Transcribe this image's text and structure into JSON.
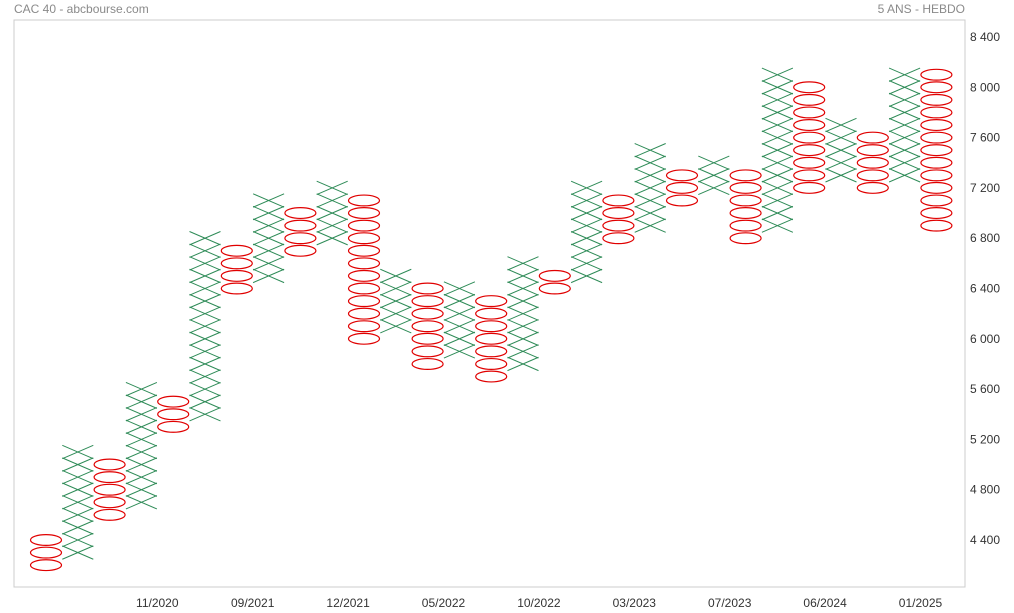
{
  "header": {
    "left": "CAC 40 - abcbourse.com",
    "right": "5 ANS - HEBDO"
  },
  "colors": {
    "x_color": "#2e8b57",
    "o_color": "#e00000",
    "frame": "#cccccc"
  },
  "chart_data": {
    "type": "point-and-figure",
    "box_size": 100,
    "ylim": [
      4100,
      8500
    ],
    "y_ticks": [
      4400,
      4800,
      5200,
      5600,
      6000,
      6400,
      6800,
      7200,
      7600,
      8000,
      8400
    ],
    "y_tick_labels": [
      "4 400",
      "4 800",
      "5 200",
      "5 600",
      "6 000",
      "6 400",
      "6 800",
      "7 200",
      "7 600",
      "8 000",
      "8 400"
    ],
    "x_labels": [
      {
        "col": 3.5,
        "label": "11/2020"
      },
      {
        "col": 6.5,
        "label": "09/2021"
      },
      {
        "col": 9.5,
        "label": "12/2021"
      },
      {
        "col": 12.5,
        "label": "05/2022"
      },
      {
        "col": 15.5,
        "label": "10/2022"
      },
      {
        "col": 18.5,
        "label": "03/2023"
      },
      {
        "col": 21.5,
        "label": "07/2023"
      },
      {
        "col": 24.5,
        "label": "06/2024"
      },
      {
        "col": 27.5,
        "label": "01/2025"
      }
    ],
    "columns": [
      {
        "type": "O",
        "high": 4400,
        "low": 4200
      },
      {
        "type": "X",
        "low": 4300,
        "high": 5100
      },
      {
        "type": "O",
        "high": 5000,
        "low": 4600
      },
      {
        "type": "X",
        "low": 4700,
        "high": 5600
      },
      {
        "type": "O",
        "high": 5500,
        "low": 5300
      },
      {
        "type": "X",
        "low": 5400,
        "high": 6800
      },
      {
        "type": "O",
        "high": 6700,
        "low": 6400
      },
      {
        "type": "X",
        "low": 6500,
        "high": 7100
      },
      {
        "type": "O",
        "high": 7000,
        "low": 6700
      },
      {
        "type": "X",
        "low": 6800,
        "high": 7200
      },
      {
        "type": "O",
        "high": 7100,
        "low": 6000
      },
      {
        "type": "X",
        "low": 6100,
        "high": 6500
      },
      {
        "type": "O",
        "high": 6400,
        "low": 5800
      },
      {
        "type": "X",
        "low": 5900,
        "high": 6400
      },
      {
        "type": "O",
        "high": 6300,
        "low": 5700
      },
      {
        "type": "X",
        "low": 5800,
        "high": 6600
      },
      {
        "type": "O",
        "high": 6500,
        "low": 6400
      },
      {
        "type": "X",
        "low": 6500,
        "high": 7200
      },
      {
        "type": "O",
        "high": 7100,
        "low": 6800
      },
      {
        "type": "X",
        "low": 6900,
        "high": 7500
      },
      {
        "type": "O",
        "high": 7300,
        "low": 7100
      },
      {
        "type": "X",
        "low": 7200,
        "high": 7400
      },
      {
        "type": "O",
        "high": 7300,
        "low": 6800
      },
      {
        "type": "X",
        "low": 6900,
        "high": 8100
      },
      {
        "type": "O",
        "high": 8000,
        "low": 7200
      },
      {
        "type": "X",
        "low": 7300,
        "high": 7700
      },
      {
        "type": "O",
        "high": 7600,
        "low": 7200
      },
      {
        "type": "X",
        "low": 7300,
        "high": 8100
      },
      {
        "type": "O",
        "high": 8100,
        "low": 6900
      }
    ]
  }
}
